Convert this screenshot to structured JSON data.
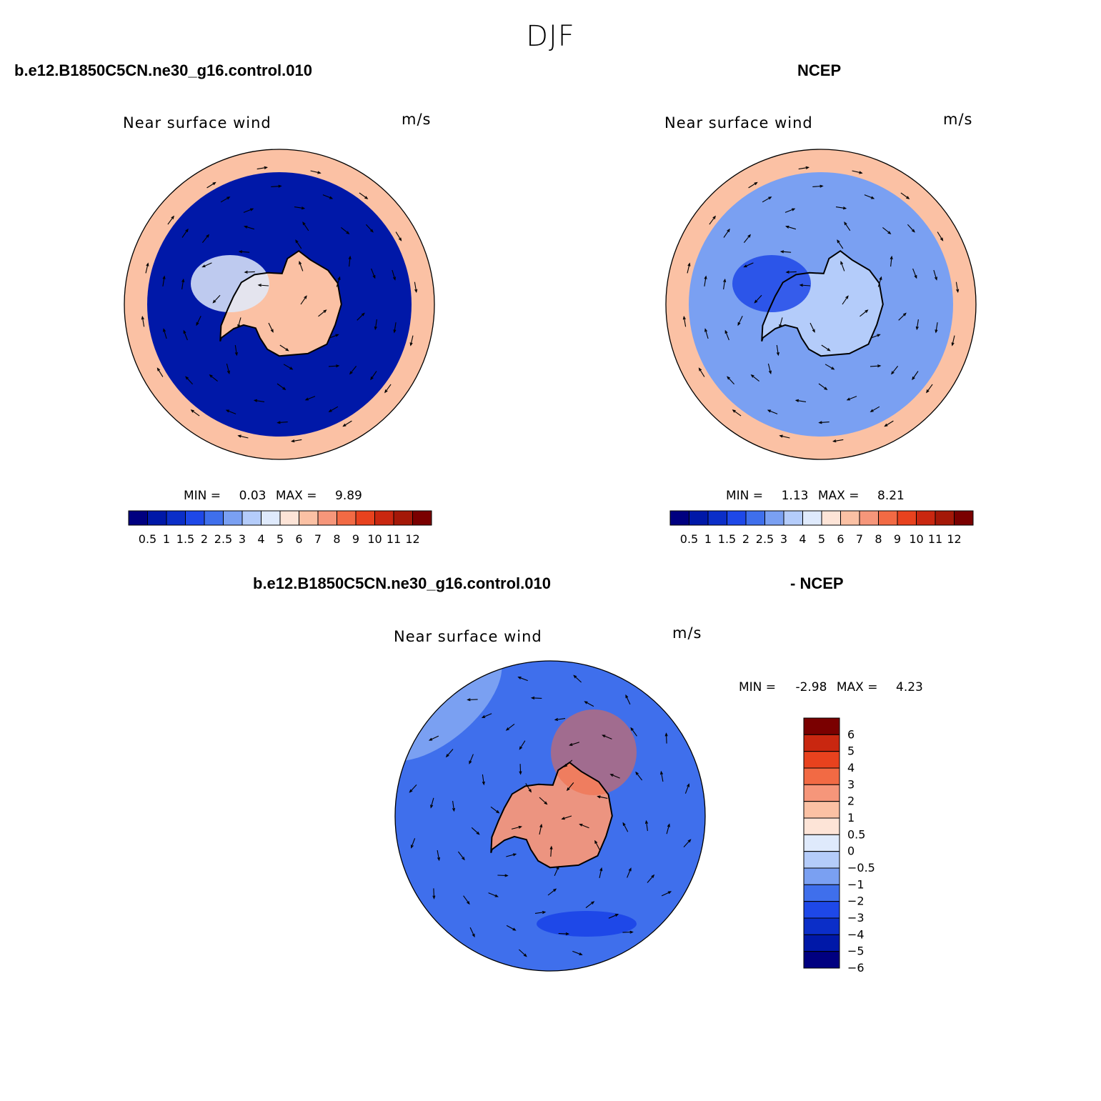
{
  "figure": {
    "title": "DJF",
    "case_name": "b.e12.B1850C5CN.ne30_g16.control.010",
    "obs_name": "NCEP",
    "diff_case_name": "b.e12.B1850C5CN.ne30_g16.control.010",
    "diff_obs_name": "- NCEP"
  },
  "colors": {
    "speed_levels": [
      "#000080",
      "#0018a8",
      "#0b2ec8",
      "#1e48e8",
      "#3f6fec",
      "#7aa0f2",
      "#b4ccfa",
      "#dfeafc",
      "#fde4d7",
      "#fbc1a4",
      "#f6967a",
      "#f26a44",
      "#e8421e",
      "#c92710",
      "#a41808",
      "#7a0000"
    ],
    "diff_levels": [
      "#000080",
      "#0018a8",
      "#0b2ec8",
      "#1e48e8",
      "#3f6fec",
      "#7aa0f2",
      "#b4ccfa",
      "#dfeafc",
      "#fde4d7",
      "#fbc1a4",
      "#f6967a",
      "#f26a44",
      "#e8421e",
      "#c92710",
      "#7a0000"
    ]
  },
  "chart_data": [
    {
      "type": "heatmap",
      "id": "model",
      "projection": "south-polar-stereographic",
      "title": "Near surface wind",
      "units": "m/s",
      "min": 0.03,
      "max": 9.89,
      "min_label": "MIN =",
      "max_label": "MAX =",
      "colorbar_ticks": [
        "0.5",
        "1",
        "1.5",
        "2",
        "2.5",
        "3",
        "4",
        "5",
        "6",
        "7",
        "8",
        "9",
        "10",
        "11",
        "12"
      ],
      "regions": [
        {
          "name": "outer ocean ring",
          "level": 9
        },
        {
          "name": "mid-latitude band",
          "level": 1
        },
        {
          "name": "antarctic interior",
          "level": 9
        },
        {
          "name": "west antarctica",
          "level": 7
        }
      ]
    },
    {
      "type": "heatmap",
      "id": "obs",
      "projection": "south-polar-stereographic",
      "title": "Near surface wind",
      "units": "m/s",
      "min": 1.13,
      "max": 8.21,
      "min_label": "MIN =",
      "max_label": "MAX =",
      "colorbar_ticks": [
        "0.5",
        "1",
        "1.5",
        "2",
        "2.5",
        "3",
        "4",
        "5",
        "6",
        "7",
        "8",
        "9",
        "10",
        "11",
        "12"
      ],
      "regions": [
        {
          "name": "outer ocean ring",
          "level": 9
        },
        {
          "name": "mid-latitude band",
          "level": 5
        },
        {
          "name": "antarctic interior",
          "level": 6
        },
        {
          "name": "west antarctica",
          "level": 3
        }
      ]
    },
    {
      "type": "heatmap",
      "id": "diff",
      "projection": "south-polar-stereographic",
      "title": "Near surface wind",
      "units": "m/s",
      "min": -2.98,
      "max": 4.23,
      "min_label": "MIN =",
      "max_label": "MAX =",
      "colorbar_ticks": [
        "6",
        "5",
        "4",
        "3",
        "2",
        "1",
        "0.5",
        "0",
        "−0.5",
        "−1",
        "−2",
        "−3",
        "−4",
        "−5",
        "−6"
      ],
      "regions": [
        {
          "name": "outer ocean",
          "level": 5
        },
        {
          "name": "antarctic interior",
          "level": 10
        },
        {
          "name": "pacific sector",
          "level": 4
        }
      ]
    }
  ]
}
